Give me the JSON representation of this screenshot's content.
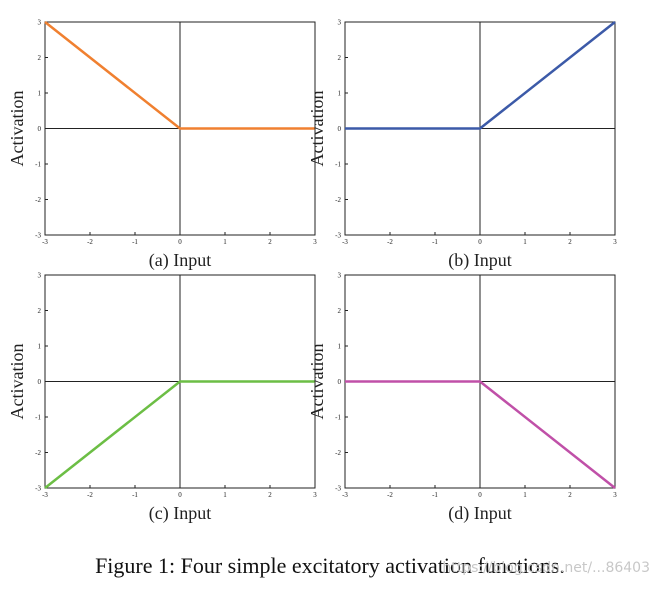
{
  "caption": "Figure 1: Four simple excitatory activation functions.",
  "watermark": "https://blog.csdn.net/...86403",
  "chart_data": [
    {
      "type": "line",
      "xlabel": "(a) Input",
      "ylabel": "Activation",
      "xlim": [
        -3,
        3
      ],
      "ylim": [
        -3,
        3
      ],
      "xticks": [
        "-3",
        "-2",
        "-1",
        "0",
        "1",
        "2",
        "3"
      ],
      "yticks": [
        "-3",
        "-2",
        "-1",
        "0",
        "1",
        "2",
        "3"
      ],
      "grid": false,
      "series": [
        {
          "x": [
            -3,
            0,
            3
          ],
          "y": [
            3,
            0,
            0
          ],
          "color": "#F08030"
        }
      ]
    },
    {
      "type": "line",
      "xlabel": "(b) Input",
      "ylabel": "Activation",
      "xlim": [
        -3,
        3
      ],
      "ylim": [
        -3,
        3
      ],
      "xticks": [
        "-3",
        "-2",
        "-1",
        "0",
        "1",
        "2",
        "3"
      ],
      "yticks": [
        "-3",
        "-2",
        "-1",
        "0",
        "1",
        "2",
        "3"
      ],
      "grid": false,
      "series": [
        {
          "x": [
            -3,
            0,
            3
          ],
          "y": [
            0,
            0,
            3
          ],
          "color": "#3C5AA8"
        }
      ]
    },
    {
      "type": "line",
      "xlabel": "(c) Input",
      "ylabel": "Activation",
      "xlim": [
        -3,
        3
      ],
      "ylim": [
        -3,
        3
      ],
      "xticks": [
        "-3",
        "-2",
        "-1",
        "0",
        "1",
        "2",
        "3"
      ],
      "yticks": [
        "-3",
        "-2",
        "-1",
        "0",
        "1",
        "2",
        "3"
      ],
      "grid": false,
      "series": [
        {
          "x": [
            -3,
            0,
            3
          ],
          "y": [
            -3,
            0,
            0
          ],
          "color": "#6CBE45"
        }
      ]
    },
    {
      "type": "line",
      "xlabel": "(d) Input",
      "ylabel": "Activation",
      "xlim": [
        -3,
        3
      ],
      "ylim": [
        -3,
        3
      ],
      "xticks": [
        "-3",
        "-2",
        "-1",
        "0",
        "1",
        "2",
        "3"
      ],
      "yticks": [
        "-3",
        "-2",
        "-1",
        "0",
        "1",
        "2",
        "3"
      ],
      "grid": false,
      "series": [
        {
          "x": [
            -3,
            0,
            3
          ],
          "y": [
            0,
            0,
            -3
          ],
          "color": "#C050A8"
        }
      ]
    }
  ]
}
